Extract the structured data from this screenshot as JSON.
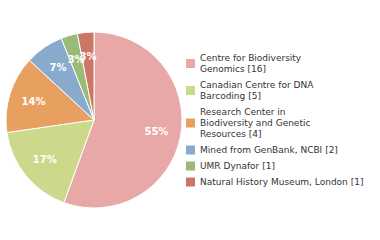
{
  "chart_data": {
    "type": "pie",
    "categories": [
      "Centre for Biodiversity\nGenomics [16]",
      "Canadian Centre for DNA\nBarcoding [5]",
      "Research Center in\nBiodiversity and Genetic\nResources [4]",
      "Mined from GenBank, NCBI [2]",
      "UMR Dynafor [1]",
      "Natural History Museum, London [1]"
    ],
    "values": [
      55,
      17,
      14,
      7,
      3,
      3
    ],
    "value_labels": [
      "55%",
      "17%",
      "14%",
      "7%",
      "3%",
      "3%"
    ],
    "colors": [
      "#e8a8a8",
      "#ccd98a",
      "#e8a060",
      "#88aacc",
      "#99bb77",
      "#cc7766"
    ],
    "data_labels": true,
    "legend": "right"
  }
}
